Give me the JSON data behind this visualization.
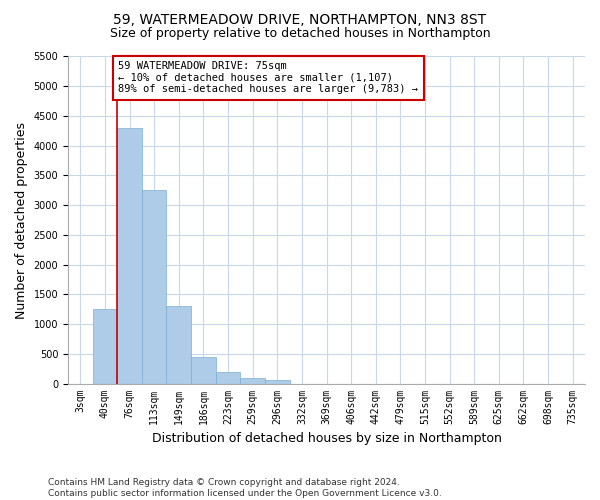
{
  "title": "59, WATERMEADOW DRIVE, NORTHAMPTON, NN3 8ST",
  "subtitle": "Size of property relative to detached houses in Northampton",
  "xlabel": "Distribution of detached houses by size in Northampton",
  "ylabel": "Number of detached properties",
  "footer": "Contains HM Land Registry data © Crown copyright and database right 2024.\nContains public sector information licensed under the Open Government Licence v3.0.",
  "categories": [
    "3sqm",
    "40sqm",
    "76sqm",
    "113sqm",
    "149sqm",
    "186sqm",
    "223sqm",
    "259sqm",
    "296sqm",
    "332sqm",
    "369sqm",
    "406sqm",
    "442sqm",
    "479sqm",
    "515sqm",
    "552sqm",
    "589sqm",
    "625sqm",
    "662sqm",
    "698sqm",
    "735sqm"
  ],
  "values": [
    0,
    1250,
    4300,
    3250,
    1300,
    450,
    200,
    100,
    60,
    0,
    0,
    0,
    0,
    0,
    0,
    0,
    0,
    0,
    0,
    0,
    0
  ],
  "bar_color": "#aecce8",
  "bar_edge_color": "#7bafd4",
  "annotation_text": "59 WATERMEADOW DRIVE: 75sqm\n← 10% of detached houses are smaller (1,107)\n89% of semi-detached houses are larger (9,783) →",
  "annotation_box_color": "#ffffff",
  "annotation_box_edge_color": "#cc0000",
  "red_line_x": 2,
  "ylim": [
    0,
    5500
  ],
  "yticks": [
    0,
    500,
    1000,
    1500,
    2000,
    2500,
    3000,
    3500,
    4000,
    4500,
    5000,
    5500
  ],
  "bg_color": "#ffffff",
  "grid_color": "#c8d8e8",
  "title_fontsize": 10,
  "subtitle_fontsize": 9,
  "axis_label_fontsize": 9,
  "tick_fontsize": 7,
  "footer_fontsize": 6.5
}
